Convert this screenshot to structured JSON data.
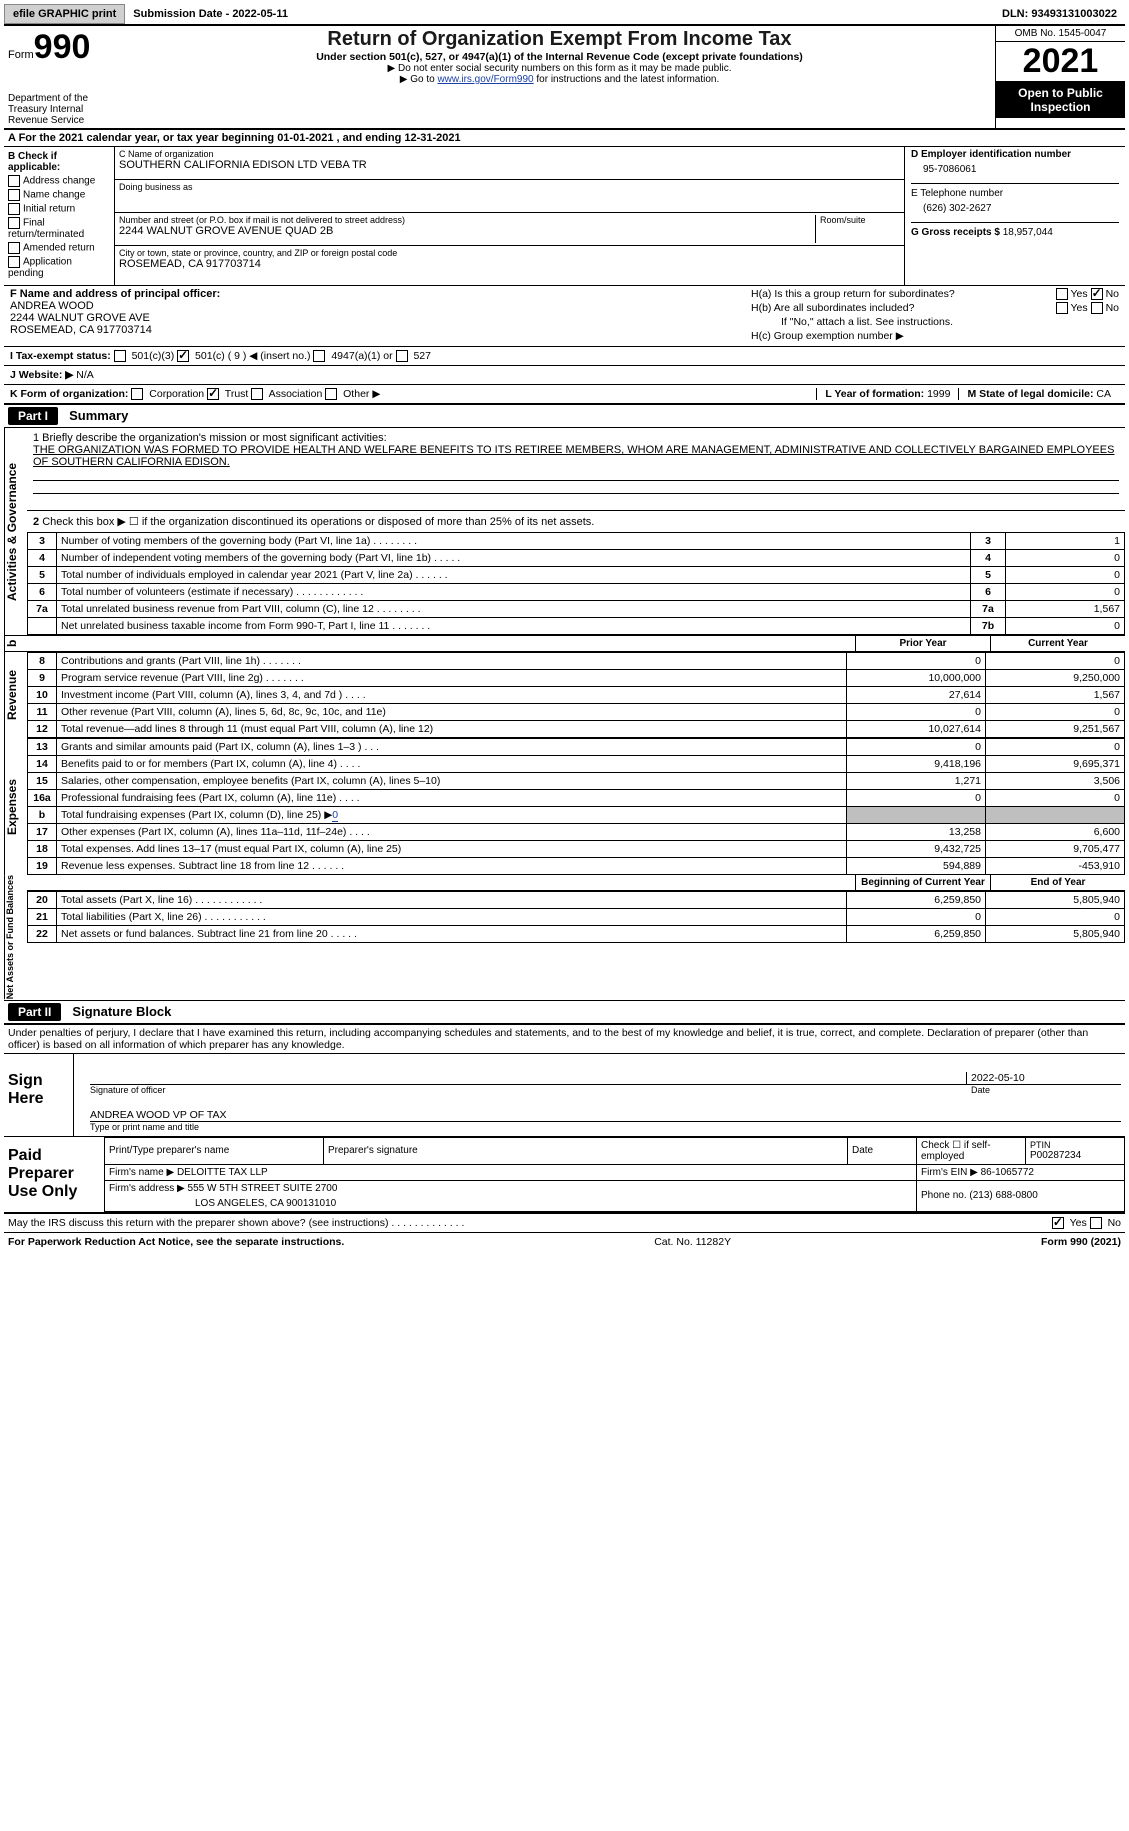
{
  "topbar": {
    "efile_btn": "efile GRAPHIC print",
    "submission": "Submission Date - 2022-05-11",
    "dln": "DLN: 93493131003022"
  },
  "header": {
    "form_label": "Form",
    "form_number": "990",
    "dept": "Department of the Treasury\nInternal Revenue Service",
    "title": "Return of Organization Exempt From Income Tax",
    "subtitle": "Under section 501(c), 527, or 4947(a)(1) of the Internal Revenue Code (except private foundations)",
    "note1": "▶ Do not enter social security numbers on this form as it may be made public.",
    "note2_pre": "▶ Go to ",
    "note2_link": "www.irs.gov/Form990",
    "note2_post": " for instructions and the latest information.",
    "omb": "OMB No. 1545-0047",
    "year": "2021",
    "open": "Open to Public Inspection"
  },
  "sectionA": "A For the 2021 calendar year, or tax year beginning 01-01-2021   , and ending 12-31-2021",
  "B": {
    "label": "B Check if applicable:",
    "items": [
      "Address change",
      "Name change",
      "Initial return",
      "Final return/terminated",
      "Amended return",
      "Application pending"
    ]
  },
  "C": {
    "name_label": "C Name of organization",
    "name": "SOUTHERN CALIFORNIA EDISON LTD VEBA TR",
    "dba_label": "Doing business as",
    "addr_label": "Number and street (or P.O. box if mail is not delivered to street address)",
    "room_label": "Room/suite",
    "addr": "2244 WALNUT GROVE AVENUE QUAD 2B",
    "city_label": "City or town, state or province, country, and ZIP or foreign postal code",
    "city": "ROSEMEAD, CA  917703714"
  },
  "D": {
    "label": "D Employer identification number",
    "value": "95-7086061"
  },
  "E": {
    "label": "E Telephone number",
    "value": "(626) 302-2627"
  },
  "G": {
    "label": "G Gross receipts $",
    "value": "18,957,044"
  },
  "F": {
    "label": "F  Name and address of principal officer:",
    "name": "ANDREA WOOD",
    "addr1": "2244 WALNUT GROVE AVE",
    "addr2": "ROSEMEAD, CA  917703714"
  },
  "H": {
    "a": "H(a)  Is this a group return for subordinates?",
    "b": "H(b)  Are all subordinates included?",
    "bnote": "If \"No,\" attach a list. See instructions.",
    "c": "H(c)  Group exemption number ▶"
  },
  "I": {
    "label": "I  Tax-exempt status:",
    "c3": "501(c)(3)",
    "c9": "501(c) ( 9 ) ◀ (insert no.)",
    "a4947": "4947(a)(1) or",
    "s527": "527"
  },
  "J": {
    "label": "J  Website: ▶",
    "value": "N/A"
  },
  "K": {
    "label": "K Form of organization:",
    "corp": "Corporation",
    "trust": "Trust",
    "assoc": "Association",
    "other": "Other ▶"
  },
  "L": {
    "label": "L Year of formation:",
    "value": "1999"
  },
  "M": {
    "label": "M State of legal domicile:",
    "value": "CA"
  },
  "partI": {
    "bar": "Part I",
    "title": "Summary",
    "line1pre": "1  Briefly describe the organization's mission or most significant activities:",
    "mission": "THE ORGANIZATION WAS FORMED TO PROVIDE HEALTH AND WELFARE BENEFITS TO ITS RETIREE MEMBERS, WHOM ARE MANAGEMENT, ADMINISTRATIVE AND COLLECTIVELY BARGAINED EMPLOYEES OF SOUTHERN CALIFORNIA EDISON.",
    "line2": "Check this box ▶ ☐ if the organization discontinued its operations or disposed of more than 25% of its net assets.",
    "rows_top": [
      {
        "n": "3",
        "t": "Number of voting members of the governing body (Part VI, line 1a)   .    .    .    .    .    .    .    .",
        "rn": "3",
        "v": "1"
      },
      {
        "n": "4",
        "t": "Number of independent voting members of the governing body (Part VI, line 1b)   .    .    .    .    .",
        "rn": "4",
        "v": "0"
      },
      {
        "n": "5",
        "t": "Total number of individuals employed in calendar year 2021 (Part V, line 2a)   .    .    .    .    .    .",
        "rn": "5",
        "v": "0"
      },
      {
        "n": "6",
        "t": "Total number of volunteers (estimate if necessary)    .    .    .    .    .    .    .    .    .    .    .    .",
        "rn": "6",
        "v": "0"
      },
      {
        "n": "7a",
        "t": "Total unrelated business revenue from Part VIII, column (C), line 12   .    .    .    .    .    .    .    .",
        "rn": "7a",
        "v": "1,567"
      },
      {
        "n": "",
        "t": "Net unrelated business taxable income from Form 990-T, Part I, line 11   .    .    .    .    .    .    .",
        "rn": "7b",
        "v": "0"
      }
    ],
    "prior_label": "Prior Year",
    "curr_label": "Current Year",
    "begin_label": "Beginning of Current Year",
    "end_label": "End of Year",
    "revenue": [
      {
        "n": "8",
        "t": "Contributions and grants (Part VIII, line 1h)   .    .    .    .    .    .    .",
        "p": "0",
        "c": "0"
      },
      {
        "n": "9",
        "t": "Program service revenue (Part VIII, line 2g)   .    .    .    .    .    .    .",
        "p": "10,000,000",
        "c": "9,250,000"
      },
      {
        "n": "10",
        "t": "Investment income (Part VIII, column (A), lines 3, 4, and 7d )   .    .    .    .",
        "p": "27,614",
        "c": "1,567"
      },
      {
        "n": "11",
        "t": "Other revenue (Part VIII, column (A), lines 5, 6d, 8c, 9c, 10c, and 11e)",
        "p": "0",
        "c": "0"
      },
      {
        "n": "12",
        "t": "Total revenue—add lines 8 through 11 (must equal Part VIII, column (A), line 12)",
        "p": "10,027,614",
        "c": "9,251,567"
      }
    ],
    "expenses": [
      {
        "n": "13",
        "t": "Grants and similar amounts paid (Part IX, column (A), lines 1–3 )  .    .    .",
        "p": "0",
        "c": "0"
      },
      {
        "n": "14",
        "t": "Benefits paid to or for members (Part IX, column (A), line 4)   .    .    .    .",
        "p": "9,418,196",
        "c": "9,695,371"
      },
      {
        "n": "15",
        "t": "Salaries, other compensation, employee benefits (Part IX, column (A), lines 5–10)",
        "p": "1,271",
        "c": "3,506"
      },
      {
        "n": "16a",
        "t": "Professional fundraising fees (Part IX, column (A), line 11e)   .    .    .    .",
        "p": "0",
        "c": "0"
      },
      {
        "n": "b",
        "t": "Total fundraising expenses (Part IX, column (D), line 25) ▶",
        "sp": true,
        "val": "0"
      },
      {
        "n": "17",
        "t": "Other expenses (Part IX, column (A), lines 11a–11d, 11f–24e)   .    .    .    .",
        "p": "13,258",
        "c": "6,600"
      },
      {
        "n": "18",
        "t": "Total expenses. Add lines 13–17 (must equal Part IX, column (A), line 25)",
        "p": "9,432,725",
        "c": "9,705,477"
      },
      {
        "n": "19",
        "t": "Revenue less expenses. Subtract line 18 from line 12   .    .    .    .    .    .",
        "p": "594,889",
        "c": "-453,910"
      }
    ],
    "netassets": [
      {
        "n": "20",
        "t": "Total assets (Part X, line 16)  .    .    .    .    .    .    .    .    .    .    .    .",
        "p": "6,259,850",
        "c": "5,805,940"
      },
      {
        "n": "21",
        "t": "Total liabilities (Part X, line 26)   .    .    .    .    .    .    .    .    .    .    .",
        "p": "0",
        "c": "0"
      },
      {
        "n": "22",
        "t": "Net assets or fund balances. Subtract line 21 from line 20   .    .    .    .    .",
        "p": "6,259,850",
        "c": "5,805,940"
      }
    ],
    "sidebars": {
      "ag": "Activities & Governance",
      "rev": "Revenue",
      "exp": "Expenses",
      "na": "Net Assets or Fund Balances"
    }
  },
  "partII": {
    "bar": "Part II",
    "title": "Signature Block",
    "decl": "Under penalties of perjury, I declare that I have examined this return, including accompanying schedules and statements, and to the best of my knowledge and belief, it is true, correct, and complete. Declaration of preparer (other than officer) is based on all information of which preparer has any knowledge.",
    "sign_here": "Sign Here",
    "sig_of_officer": "Signature of officer",
    "date": "Date",
    "sigdate": "2022-05-10",
    "printed": "ANDREA WOOD VP OF TAX",
    "printed_label": "Type or print name and title",
    "paid": "Paid Preparer Use Only",
    "pt_name_label": "Print/Type preparer's name",
    "pt_sig_label": "Preparer's signature",
    "pt_date_label": "Date",
    "pt_check": "Check ☐ if self-employed",
    "ptin_label": "PTIN",
    "ptin": "P00287234",
    "firm_name_label": "Firm's name    ▶",
    "firm_name": "DELOITTE TAX LLP",
    "firm_ein_label": "Firm's EIN ▶",
    "firm_ein": "86-1065772",
    "firm_addr_label": "Firm's address ▶",
    "firm_addr1": "555 W 5TH STREET SUITE 2700",
    "firm_addr2": "LOS ANGELES, CA  900131010",
    "phone_label": "Phone no.",
    "phone": "(213) 688-0800"
  },
  "footer": {
    "discuss": "May the IRS discuss this return with the preparer shown above? (see instructions)   .    .    .    .    .    .    .    .    .    .    .    .    .",
    "yes": "Yes",
    "no": "No",
    "paperwork": "For Paperwork Reduction Act Notice, see the separate instructions.",
    "cat": "Cat. No. 11282Y",
    "form": "Form 990 (2021)"
  }
}
